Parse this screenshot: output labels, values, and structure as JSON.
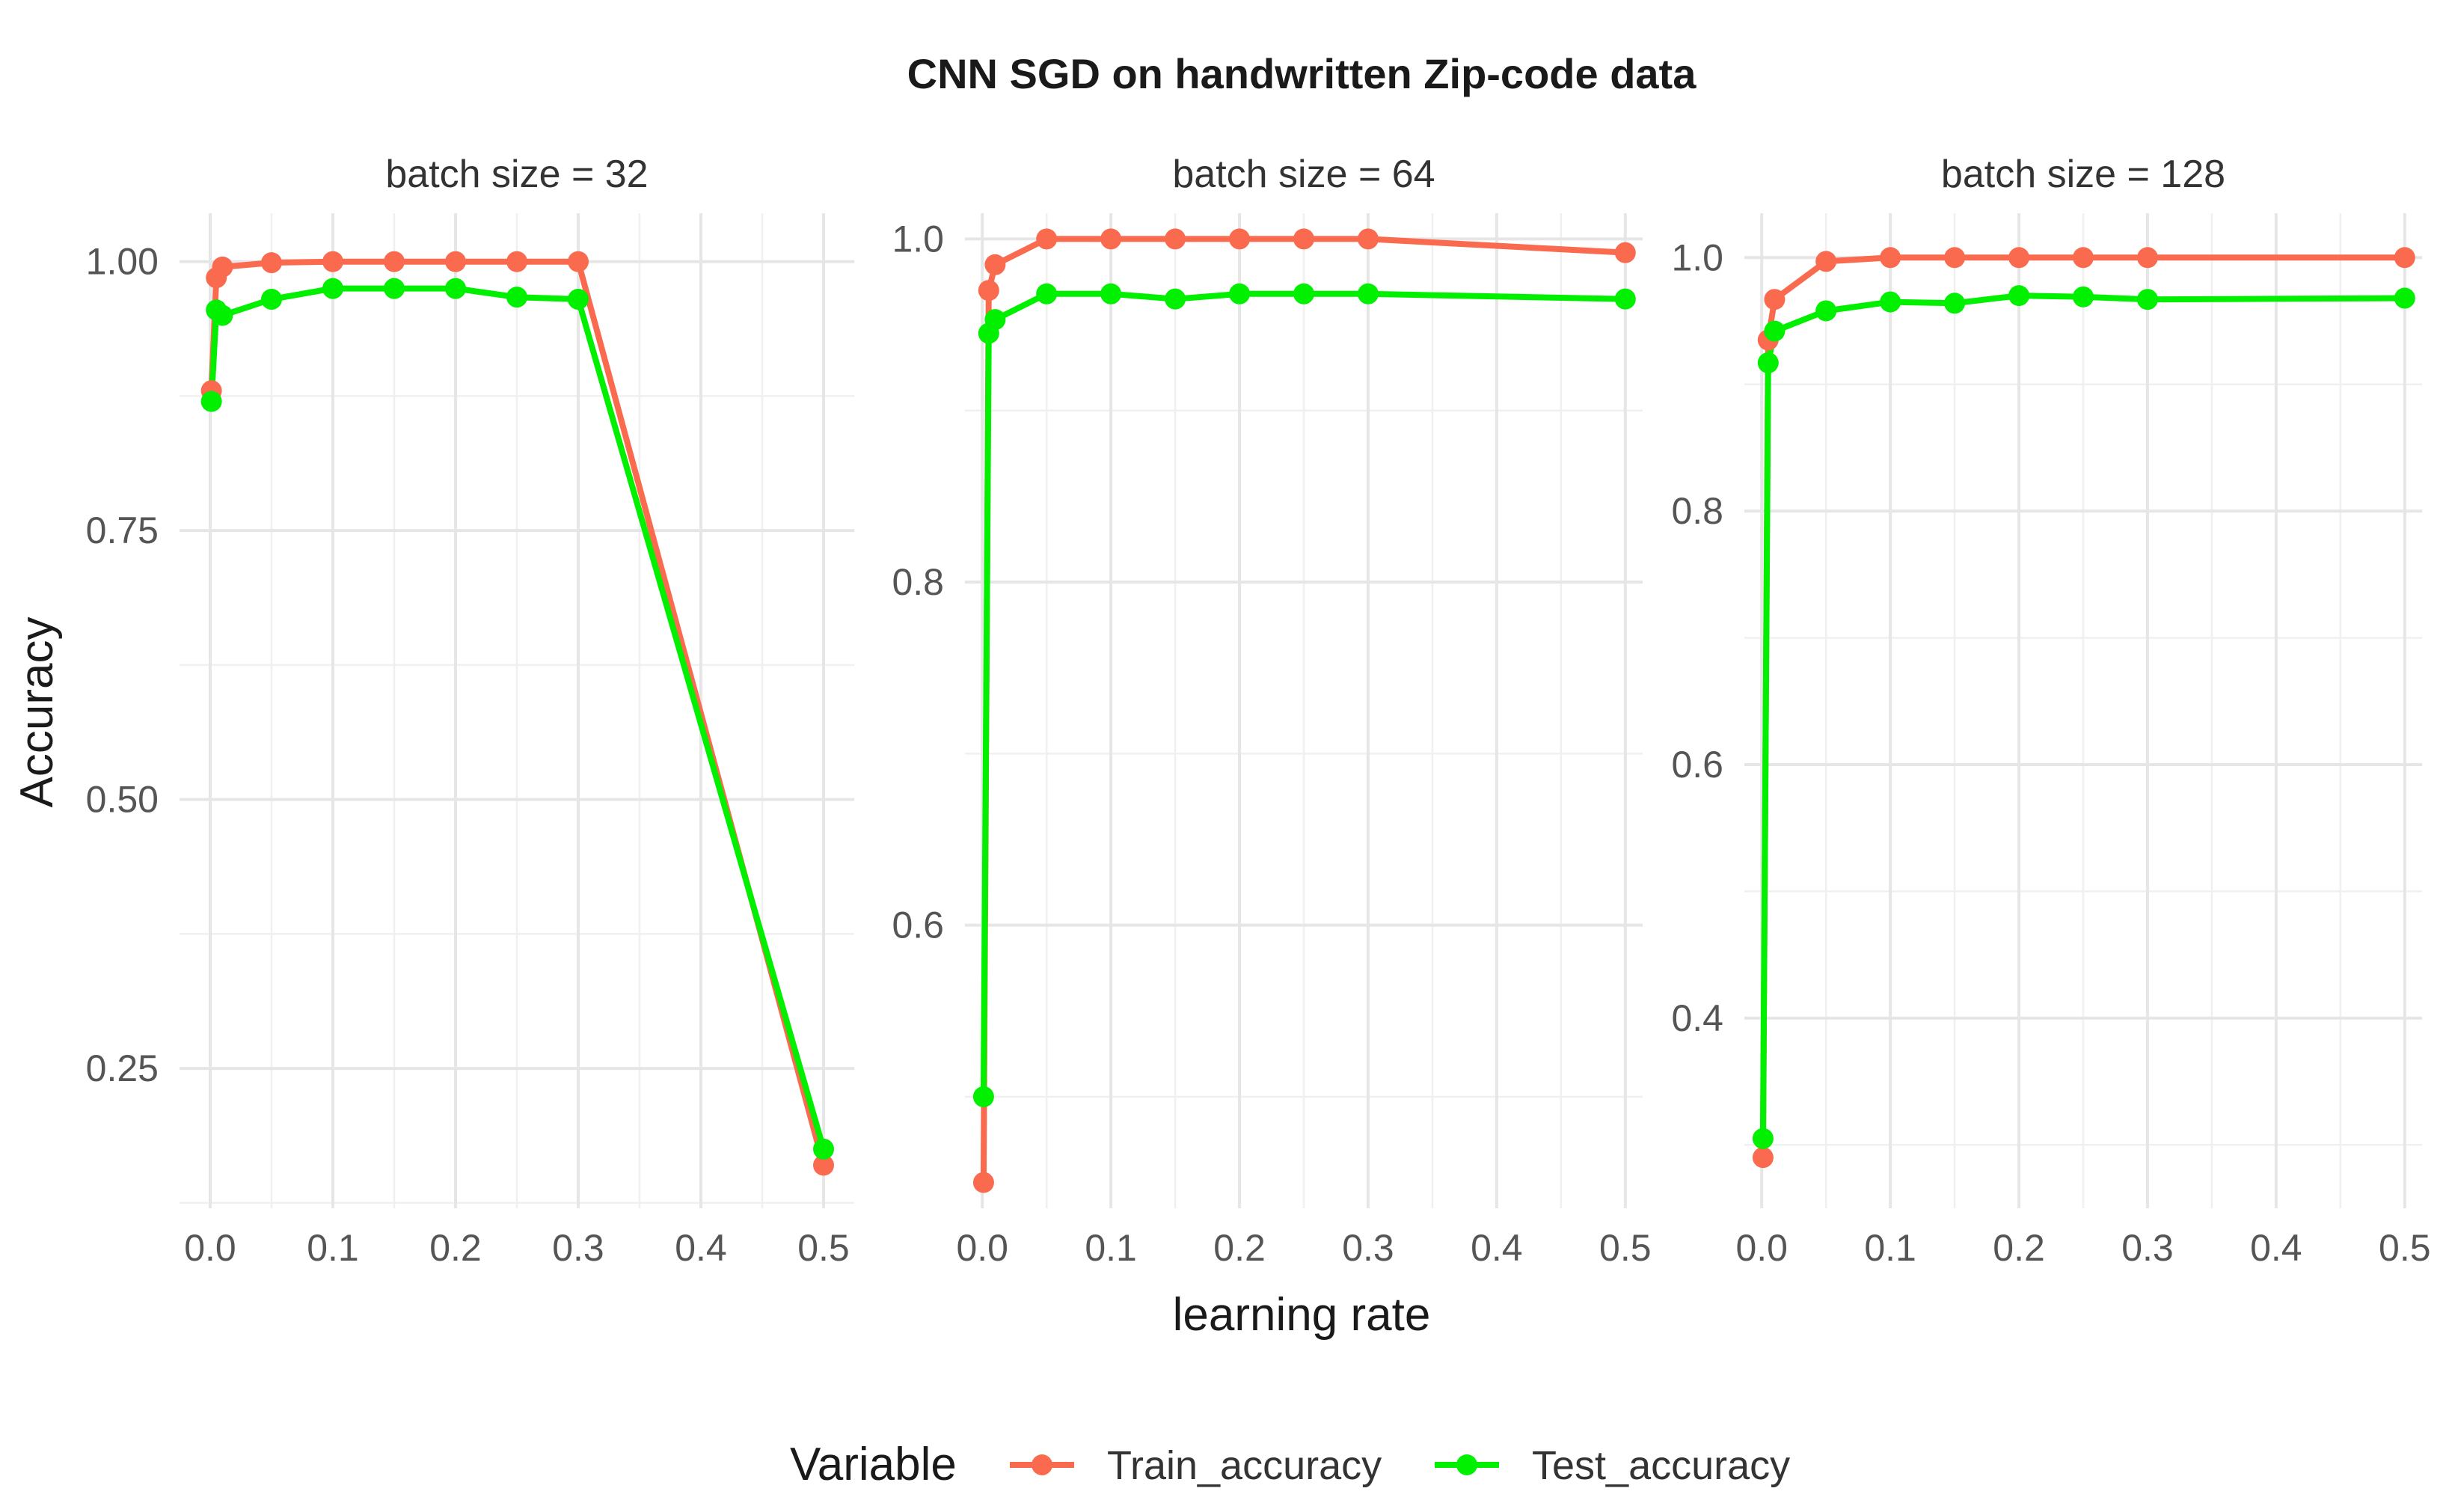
{
  "chart_data": {
    "type": "line",
    "title": "CNN SGD on handwritten Zip-code data",
    "xlabel": "learning rate",
    "ylabel": "Accuracy",
    "legend": {
      "title": "Variable",
      "position": "bottom",
      "entries": [
        "Train_accuracy",
        "Test_accuracy"
      ]
    },
    "colors": {
      "Train_accuracy": "#FA6A4E",
      "Test_accuracy": "#00F000"
    },
    "grid": true,
    "panels": [
      {
        "strip": "batch size = 32",
        "xlim": [
          -0.025,
          0.525
        ],
        "ylim": [
          0.12,
          1.045
        ],
        "xticks": [
          0.0,
          0.1,
          0.2,
          0.3,
          0.4,
          0.5
        ],
        "xtick_labels": [
          "0.0",
          "0.1",
          "0.2",
          "0.3",
          "0.4",
          "0.5"
        ],
        "yticks": [
          0.25,
          0.5,
          0.75,
          1.0
        ],
        "ytick_labels": [
          "0.25",
          "0.50",
          "0.75",
          "1.00"
        ],
        "series": [
          {
            "name": "Train_accuracy",
            "x": [
              0.001,
              0.005,
              0.01,
              0.05,
              0.1,
              0.15,
              0.2,
              0.25,
              0.3,
              0.5
            ],
            "y": [
              0.88,
              0.985,
              0.995,
              0.999,
              1.0,
              1.0,
              1.0,
              1.0,
              1.0,
              0.16
            ]
          },
          {
            "name": "Test_accuracy",
            "x": [
              0.001,
              0.005,
              0.01,
              0.05,
              0.1,
              0.15,
              0.2,
              0.25,
              0.3,
              0.5
            ],
            "y": [
              0.87,
              0.955,
              0.95,
              0.965,
              0.975,
              0.975,
              0.975,
              0.967,
              0.965,
              0.175
            ]
          }
        ]
      },
      {
        "strip": "batch size = 64",
        "xlim": [
          -0.0135,
          0.5135
        ],
        "ylim": [
          0.435,
          1.015
        ],
        "xticks": [
          0.0,
          0.1,
          0.2,
          0.3,
          0.4,
          0.5
        ],
        "xtick_labels": [
          "0.0",
          "0.1",
          "0.2",
          "0.3",
          "0.4",
          "0.5"
        ],
        "yticks": [
          0.6,
          0.8,
          1.0
        ],
        "ytick_labels": [
          "0.6",
          "0.8",
          "1.0"
        ],
        "series": [
          {
            "name": "Train_accuracy",
            "x": [
              0.001,
              0.005,
              0.01,
              0.05,
              0.1,
              0.15,
              0.2,
              0.25,
              0.3,
              0.5
            ],
            "y": [
              0.45,
              0.97,
              0.985,
              1.0,
              1.0,
              1.0,
              1.0,
              1.0,
              1.0,
              0.992
            ]
          },
          {
            "name": "Test_accuracy",
            "x": [
              0.001,
              0.005,
              0.01,
              0.05,
              0.1,
              0.15,
              0.2,
              0.25,
              0.3,
              0.5
            ],
            "y": [
              0.5,
              0.945,
              0.953,
              0.968,
              0.968,
              0.965,
              0.968,
              0.968,
              0.968,
              0.965
            ]
          }
        ]
      },
      {
        "strip": "batch size = 128",
        "xlim": [
          -0.0135,
          0.5135
        ],
        "ylim": [
          0.25,
          1.035
        ],
        "xticks": [
          0.0,
          0.1,
          0.2,
          0.3,
          0.4,
          0.5
        ],
        "xtick_labels": [
          "0.0",
          "0.1",
          "0.2",
          "0.3",
          "0.4",
          "0.5"
        ],
        "yticks": [
          0.4,
          0.6,
          0.8,
          1.0
        ],
        "ytick_labels": [
          "0.4",
          "0.6",
          "0.8",
          "1.0"
        ],
        "series": [
          {
            "name": "Train_accuracy",
            "x": [
              0.001,
              0.005,
              0.01,
              0.05,
              0.1,
              0.15,
              0.2,
              0.25,
              0.3,
              0.5
            ],
            "y": [
              0.29,
              0.935,
              0.967,
              0.997,
              1.0,
              1.0,
              1.0,
              1.0,
              1.0,
              1.0
            ]
          },
          {
            "name": "Test_accuracy",
            "x": [
              0.001,
              0.005,
              0.01,
              0.05,
              0.1,
              0.15,
              0.2,
              0.25,
              0.3,
              0.5
            ],
            "y": [
              0.305,
              0.917,
              0.942,
              0.958,
              0.965,
              0.964,
              0.97,
              0.969,
              0.967,
              0.968
            ]
          }
        ]
      }
    ]
  }
}
